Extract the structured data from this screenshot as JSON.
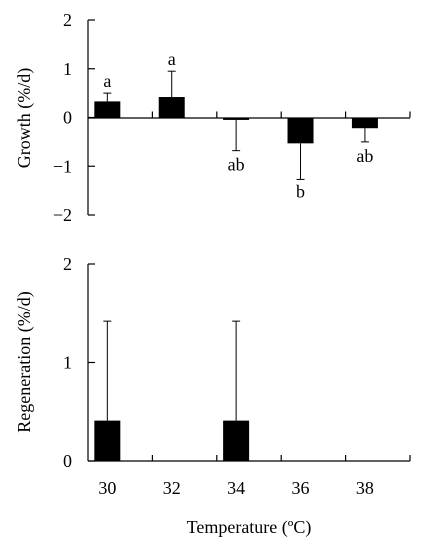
{
  "chart_data": [
    {
      "type": "bar",
      "ylabel": "Growth (%/d)",
      "xlabel": "",
      "categories": [
        "30",
        "32",
        "34",
        "36",
        "38"
      ],
      "values": [
        0.33,
        0.42,
        -0.05,
        -0.53,
        -0.22
      ],
      "error_up": [
        0.17,
        0.53,
        0,
        0,
        0
      ],
      "error_down": [
        0,
        0,
        0.63,
        0.74,
        0.28
      ],
      "significance": [
        "a",
        "a",
        "ab",
        "b",
        "ab"
      ],
      "ylim": [
        -2,
        2
      ],
      "yticks": [
        "2",
        "1",
        "0",
        "−1",
        "−2"
      ],
      "ytick_values": [
        2,
        1,
        0,
        -1,
        -2
      ]
    },
    {
      "type": "bar",
      "ylabel": "Regeneration (%/d)",
      "xlabel": "Temperature (ºC)",
      "categories": [
        "30",
        "32",
        "34",
        "36",
        "38"
      ],
      "values": [
        0.41,
        0,
        0.41,
        0,
        0
      ],
      "error_up": [
        1.01,
        0,
        1.01,
        0,
        0
      ],
      "ylim": [
        0,
        2
      ],
      "yticks": [
        "2",
        "1",
        "0"
      ],
      "ytick_values": [
        2,
        1,
        0
      ]
    }
  ],
  "colors": {
    "bar": "#000000",
    "axis": "#000000"
  }
}
